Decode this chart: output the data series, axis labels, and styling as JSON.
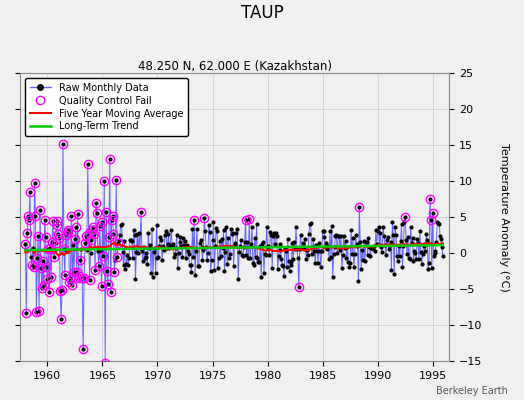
{
  "title": "TAUP",
  "subtitle": "48.250 N, 62.000 E (Kazakhstan)",
  "ylabel": "Temperature Anomaly (°C)",
  "watermark": "Berkeley Earth",
  "ylim": [
    -15,
    25
  ],
  "yticks": [
    -15,
    -10,
    -5,
    0,
    5,
    10,
    15,
    20,
    25
  ],
  "xlim": [
    1957.5,
    1996.5
  ],
  "xticks": [
    1960,
    1965,
    1970,
    1975,
    1980,
    1985,
    1990,
    1995
  ],
  "raw_line_color": "#6666ff",
  "raw_dot_color": "#000000",
  "qc_color": "#ff00ff",
  "ma_color": "#ff0000",
  "trend_color": "#00cc00",
  "bg_color": "#f0f0f0",
  "grid_color": "#cccccc",
  "seed": 17
}
